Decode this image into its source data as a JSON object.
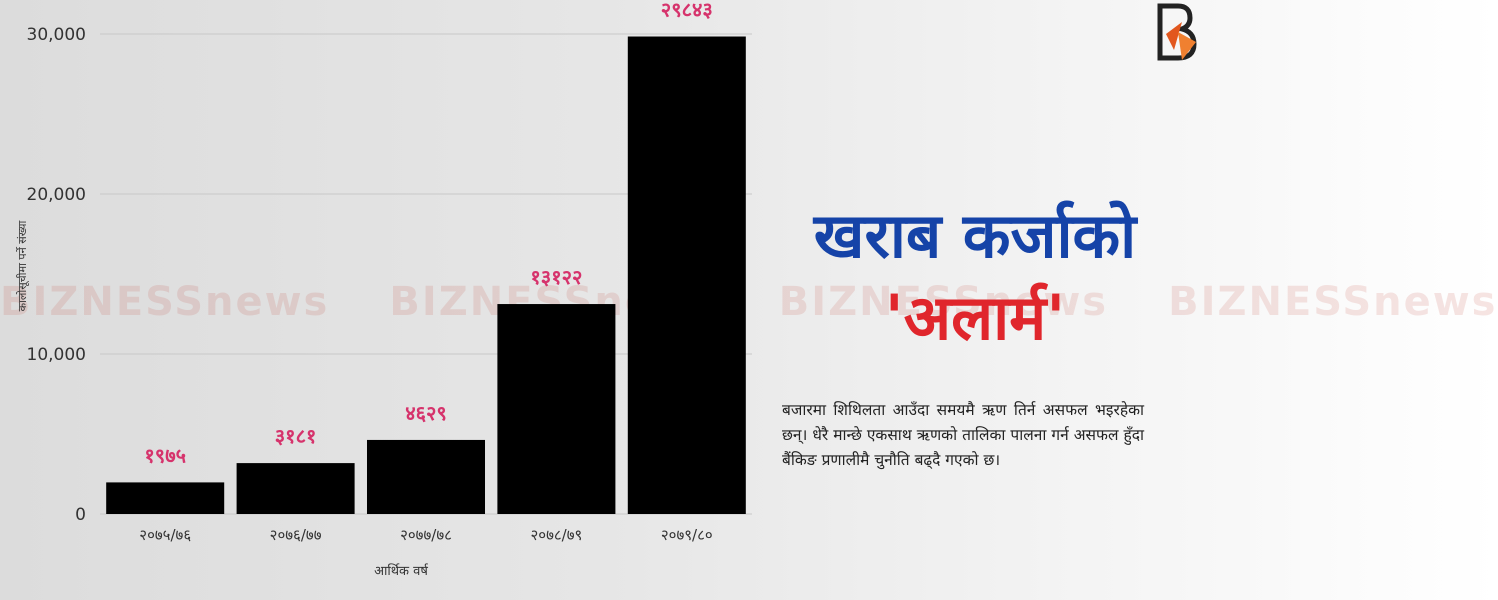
{
  "chart_data": {
    "type": "bar",
    "categories": [
      "२०७५/७६",
      "२०७६/७७",
      "२०७७/७८",
      "२०७८/७९",
      "२०७९/८०"
    ],
    "values": [
      1975,
      3181,
      4629,
      13122,
      29843
    ],
    "data_labels": [
      "१९७५",
      "३१८१",
      "४६२९",
      "१३१२२",
      "२९८४३"
    ],
    "xlabel": "आर्थिक वर्ष",
    "ylabel": "कालोसूचीमा पर्ने संख्या",
    "ylim": [
      0,
      30000
    ],
    "yticks": [
      0,
      10000,
      20000,
      30000
    ],
    "ytick_labels": [
      "0",
      "10,000",
      "20,000",
      "30,000"
    ],
    "grid": true,
    "bar_color": "#000000",
    "label_color": "#d6336c"
  },
  "headline": {
    "line1": "खराब कर्जाको",
    "line2": "'अलार्म'",
    "line1_color": "#1543a8",
    "line2_color": "#e0262c"
  },
  "description": "बजारमा शिथिलता आउँदा समयमै ऋण तिर्न असफल भइरहेका छन्। धेरै मान्छे एकसाथ ऋणको तालिका पालना गर्न असफल हुँदा बैंकिङ प्रणालीमै चुनौति बढ्दै गएको छ।",
  "watermark": {
    "text": "BIZNESSnews"
  },
  "logo": {
    "letter": "B"
  }
}
